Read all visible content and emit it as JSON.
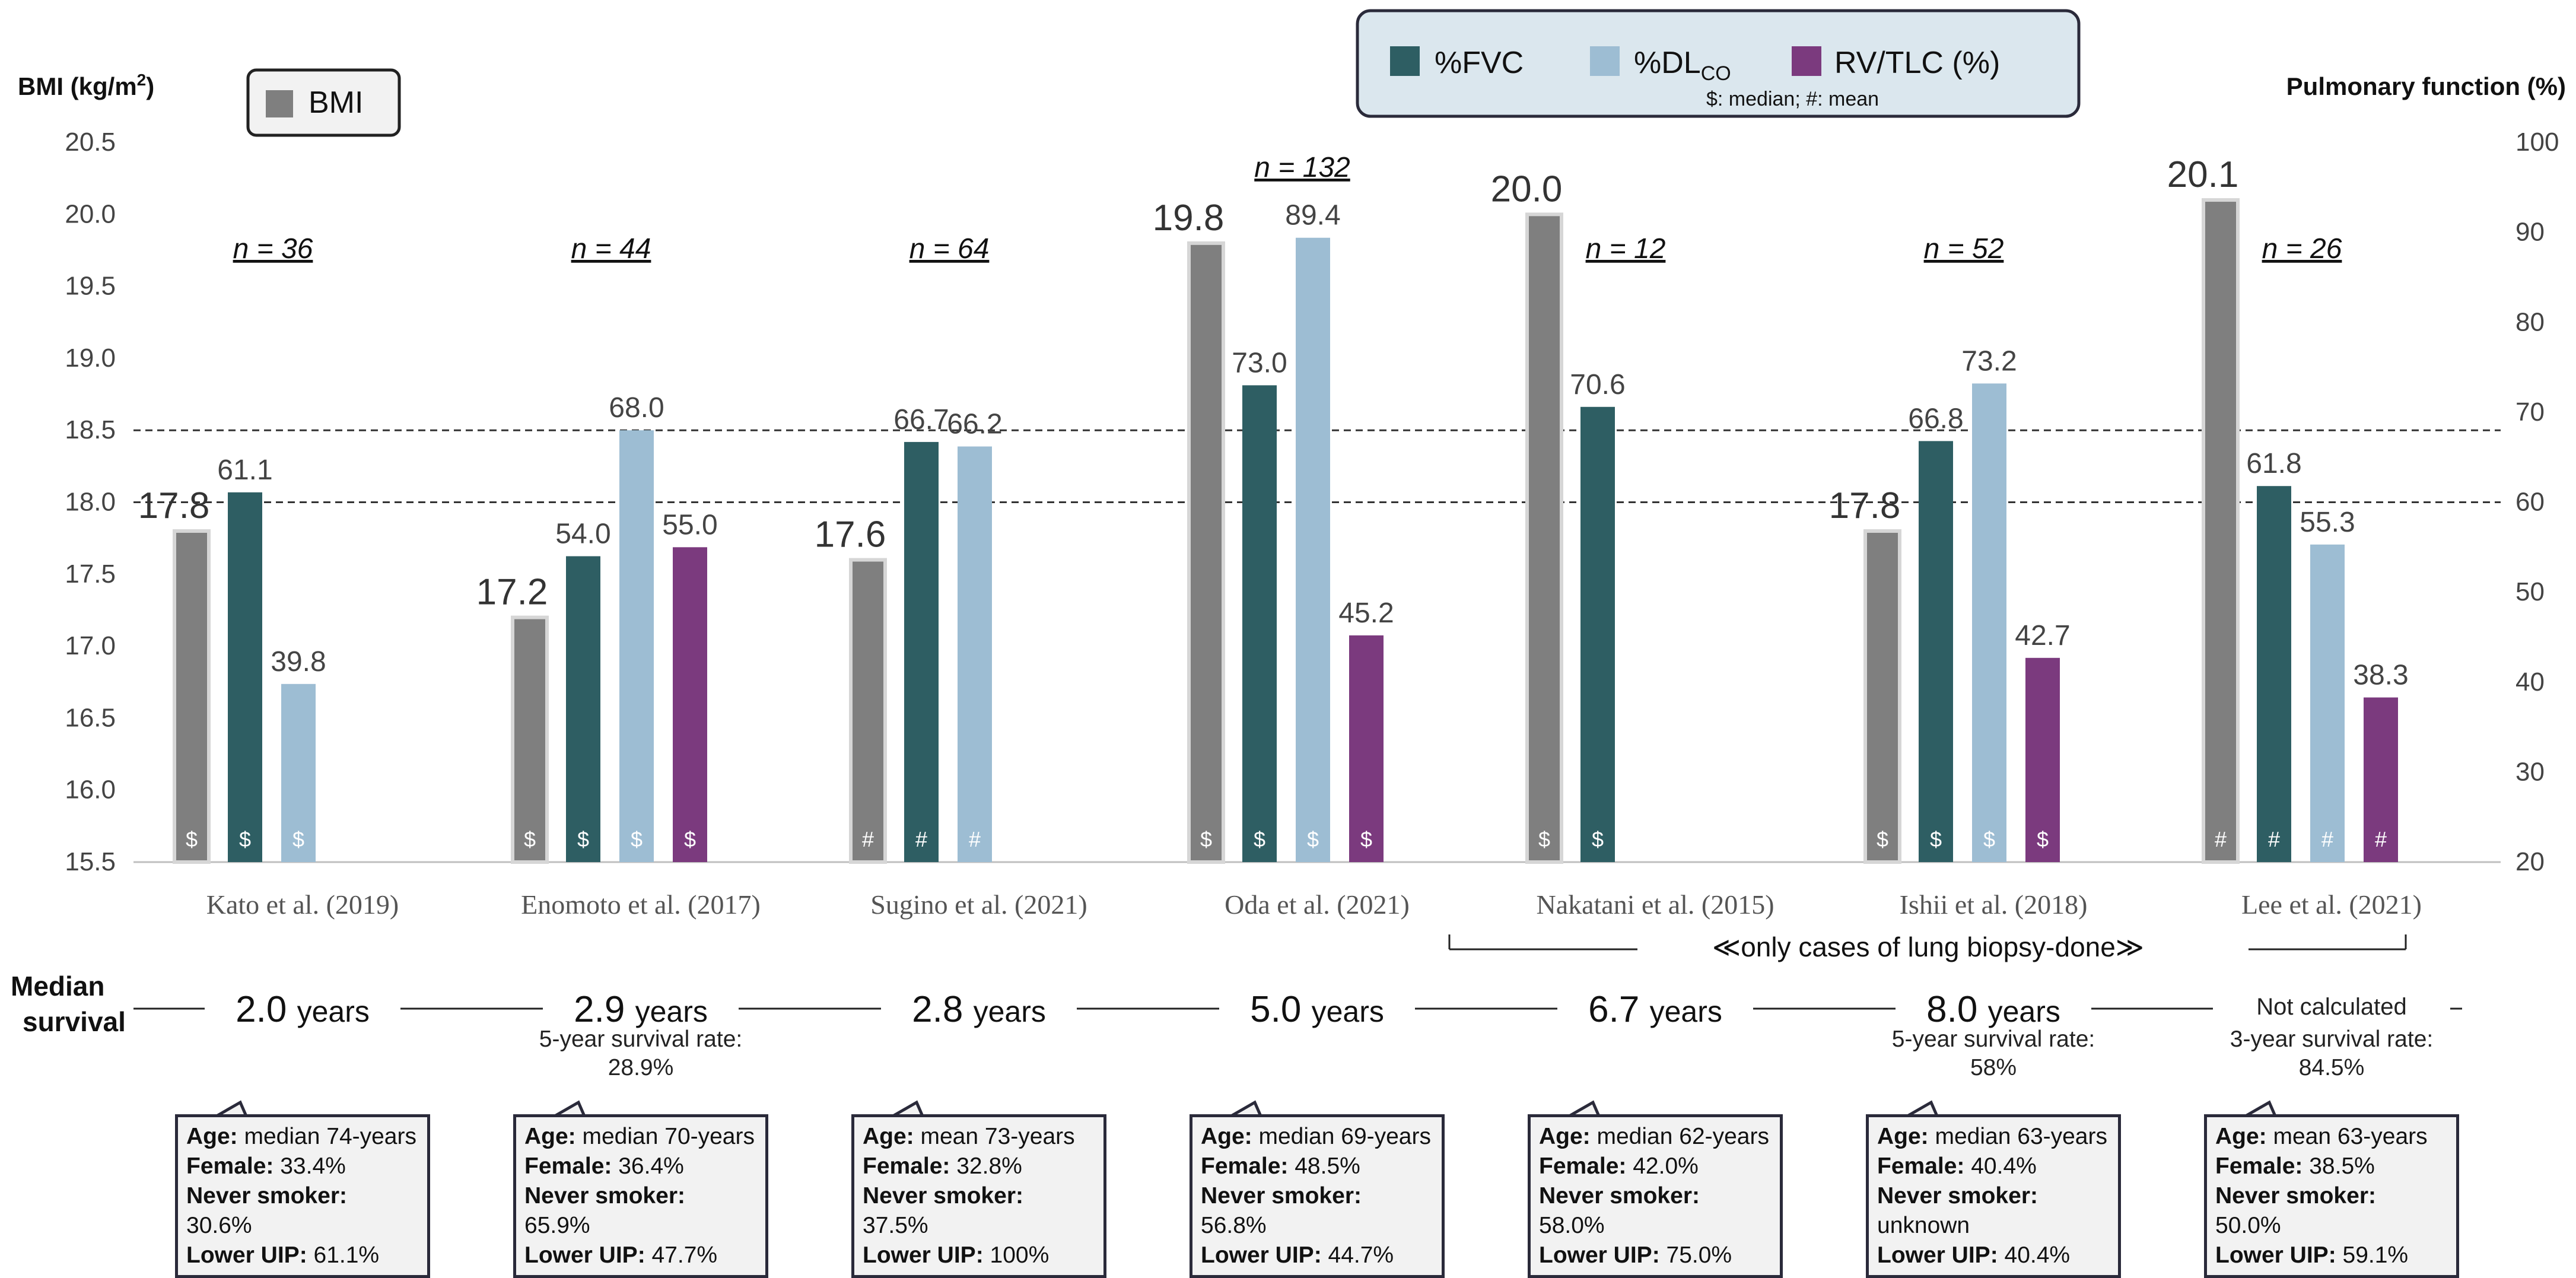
{
  "chart_data": {
    "type": "bar",
    "left_axis": {
      "label_main": "BMI (kg/m",
      "label_sup": "2",
      "label_end": ")",
      "min": 15.5,
      "max": 20.5,
      "ticks": [
        "15.5",
        "16.0",
        "16.5",
        "17.0",
        "17.5",
        "18.0",
        "18.5",
        "19.0",
        "19.5",
        "20.0",
        "20.5"
      ]
    },
    "right_axis": {
      "label": "Pulmonary function (%)",
      "min": 20,
      "max": 100,
      "ticks": [
        "20",
        "30",
        "40",
        "50",
        "60",
        "70",
        "80",
        "90",
        "100"
      ]
    },
    "reference_lines": [
      {
        "axis": "right",
        "value": 60
      },
      {
        "axis": "right",
        "value": 68
      }
    ],
    "legend_bmi": "BMI",
    "legend": {
      "fvc": "%FVC",
      "dlco_main": "%DL",
      "dlco_sub": "CO",
      "rvtlc": "RV/TLC (%)",
      "note": "$: median;  #: mean"
    },
    "colors": {
      "bmi": "#7f7f7f",
      "fvc": "#2e5e63",
      "dlco": "#9dbdd3",
      "rvtlc": "#7b3a7e",
      "legend_bg": "#dbe7ee"
    },
    "categories": [
      "Kato et al. (2019)",
      "Enomoto et al. (2017)",
      "Sugino et al. (2021)",
      "Oda et al. (2021)",
      "Nakatani et al. (2015)",
      "Ishii et al. (2018)",
      "Lee et al. (2021)"
    ],
    "n_labels": [
      "n = 36",
      "n = 44",
      "n = 64",
      "n = 132",
      "n = 12",
      "n = 52",
      "n = 26"
    ],
    "series": [
      {
        "name": "BMI",
        "key": "bmi",
        "axis": "left",
        "values": [
          17.8,
          17.2,
          17.6,
          19.8,
          20.0,
          17.8,
          20.1
        ],
        "labels": [
          "17.8",
          "17.2",
          "17.6",
          "19.8",
          "20.0",
          "17.8",
          "20.1"
        ],
        "marks": [
          "$",
          "$",
          "#",
          "$",
          "$",
          "$",
          "#"
        ]
      },
      {
        "name": "%FVC",
        "key": "fvc",
        "axis": "right",
        "values": [
          61.1,
          54.0,
          66.7,
          73.0,
          70.6,
          66.8,
          61.8
        ],
        "labels": [
          "61.1",
          "54.0",
          "66.7",
          "73.0",
          "70.6",
          "66.8",
          "61.8"
        ],
        "marks": [
          "$",
          "$",
          "#",
          "$",
          "$",
          "$",
          "#"
        ]
      },
      {
        "name": "%DLCO",
        "key": "dlco",
        "axis": "right",
        "values": [
          39.8,
          68.0,
          66.2,
          89.4,
          null,
          73.2,
          55.3
        ],
        "labels": [
          "39.8",
          "68.0",
          "66.2",
          "89.4",
          "",
          "73.2",
          "55.3"
        ],
        "marks": [
          "$",
          "$",
          "#",
          "$",
          "",
          "$",
          "#"
        ]
      },
      {
        "name": "RV/TLC (%)",
        "key": "rvtlc",
        "axis": "right",
        "values": [
          null,
          55.0,
          null,
          45.2,
          null,
          42.7,
          38.3
        ],
        "labels": [
          "",
          "55.0",
          "",
          "45.2",
          "",
          "42.7",
          "38.3"
        ],
        "marks": [
          "",
          "$",
          "",
          "$",
          "",
          "$",
          "#"
        ]
      }
    ],
    "biopsy_note": "≪only cases of lung biopsy-done≫"
  },
  "survival": {
    "label_line1": "Median",
    "label_line2": "survival",
    "items": [
      {
        "value": "2.0",
        "unit": "years"
      },
      {
        "value": "2.9",
        "unit": "years"
      },
      {
        "value": "2.8",
        "unit": "years"
      },
      {
        "value": "5.0",
        "unit": "years"
      },
      {
        "value": "6.7",
        "unit": "years"
      },
      {
        "value": "8.0",
        "unit": "years"
      },
      {
        "value": "",
        "unit": "Not calculated"
      }
    ],
    "rates": [
      {
        "study": 1,
        "line1": "5-year survival rate:",
        "line2": "28.9%"
      },
      {
        "study": 5,
        "line1": "5-year survival rate:",
        "line2": "58%"
      },
      {
        "study": 6,
        "line1": "3-year survival rate:",
        "line2": "84.5%"
      }
    ]
  },
  "demographics": {
    "age_label": "Age:",
    "female_label": "Female:",
    "smoker_label": "Never smoker:",
    "uip_label": "Lower UIP:",
    "boxes": [
      {
        "age": "median 74-years",
        "female": "33.4%",
        "smoker": "30.6%",
        "uip": "61.1%"
      },
      {
        "age": "median 70-years",
        "female": "36.4%",
        "smoker": "65.9%",
        "uip": "47.7%"
      },
      {
        "age": "mean 73-years",
        "female": "32.8%",
        "smoker": "37.5%",
        "uip": "100%"
      },
      {
        "age": "median 69-years",
        "female": "48.5%",
        "smoker": "56.8%",
        "uip": "44.7%"
      },
      {
        "age": "median 62-years",
        "female": "42.0%",
        "smoker": "58.0%",
        "uip": "75.0%"
      },
      {
        "age": "median 63-years",
        "female": "40.4%",
        "smoker": "unknown",
        "uip": "40.4%"
      },
      {
        "age": "mean 63-years",
        "female": "38.5%",
        "smoker": "50.0%",
        "uip": "59.1%"
      }
    ]
  }
}
